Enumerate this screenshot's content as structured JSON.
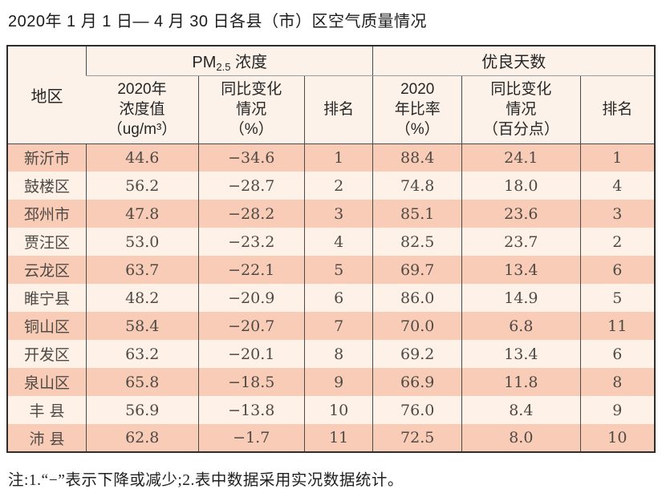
{
  "title": "2020年 1 月 1 日— 4 月 30 日各县（市）区空气质量情况",
  "colors": {
    "row_odd": "#f8ccb6",
    "row_even": "#fdf1e8",
    "header_bg": "#fdf2e9",
    "border_outer": "#2d2d2d",
    "border_inner": "#4a4a4a",
    "header_divider": "#9b9b9b",
    "body_text": "#4f4a46"
  },
  "table": {
    "header": {
      "region": "地区",
      "pm_group": {
        "main": "PM",
        "sub": "2.5",
        "tail": " 浓度"
      },
      "good_group": "优良天数",
      "pm_cols": {
        "concentration": "2020年\n浓度值\n（ug/m³）",
        "change": "同比变化\n情况\n（%）",
        "rank": "排名"
      },
      "good_cols": {
        "rate": "2020\n年比率\n（%）",
        "change": "同比变化\n情况\n（百分点）",
        "rank": "排名"
      }
    },
    "rows": [
      {
        "region": "新沂市",
        "pm_value": "44.6",
        "pm_change": "−34.6",
        "pm_rank": "1",
        "rate": "88.4",
        "rate_change": "24.1",
        "rate_rank": "1"
      },
      {
        "region": "鼓楼区",
        "pm_value": "56.2",
        "pm_change": "−28.7",
        "pm_rank": "2",
        "rate": "74.8",
        "rate_change": "18.0",
        "rate_rank": "4"
      },
      {
        "region": "邳州市",
        "pm_value": "47.8",
        "pm_change": "−28.2",
        "pm_rank": "3",
        "rate": "85.1",
        "rate_change": "23.6",
        "rate_rank": "3"
      },
      {
        "region": "贾汪区",
        "pm_value": "53.0",
        "pm_change": "−23.2",
        "pm_rank": "4",
        "rate": "82.5",
        "rate_change": "23.7",
        "rate_rank": "2"
      },
      {
        "region": "云龙区",
        "pm_value": "63.7",
        "pm_change": "−22.1",
        "pm_rank": "5",
        "rate": "69.7",
        "rate_change": "13.4",
        "rate_rank": "6"
      },
      {
        "region": "睢宁县",
        "pm_value": "48.2",
        "pm_change": "−20.9",
        "pm_rank": "6",
        "rate": "86.0",
        "rate_change": "14.9",
        "rate_rank": "5"
      },
      {
        "region": "铜山区",
        "pm_value": "58.4",
        "pm_change": "−20.7",
        "pm_rank": "7",
        "rate": "70.0",
        "rate_change": "6.8",
        "rate_rank": "11"
      },
      {
        "region": "开发区",
        "pm_value": "63.2",
        "pm_change": "−20.1",
        "pm_rank": "8",
        "rate": "69.2",
        "rate_change": "13.4",
        "rate_rank": "6"
      },
      {
        "region": "泉山区",
        "pm_value": "65.8",
        "pm_change": "−18.5",
        "pm_rank": "9",
        "rate": "66.9",
        "rate_change": "11.8",
        "rate_rank": "8"
      },
      {
        "region": "丰 县",
        "pm_value": "56.9",
        "pm_change": "−13.8",
        "pm_rank": "10",
        "rate": "76.0",
        "rate_change": "8.4",
        "rate_rank": "9"
      },
      {
        "region": "沛 县",
        "pm_value": "62.8",
        "pm_change": "−1.7",
        "pm_rank": "11",
        "rate": "72.5",
        "rate_change": "8.0",
        "rate_rank": "10"
      }
    ]
  },
  "footnote": "注:1.“−”表示下降或减少;2.表中数据采用实况数据统计。"
}
